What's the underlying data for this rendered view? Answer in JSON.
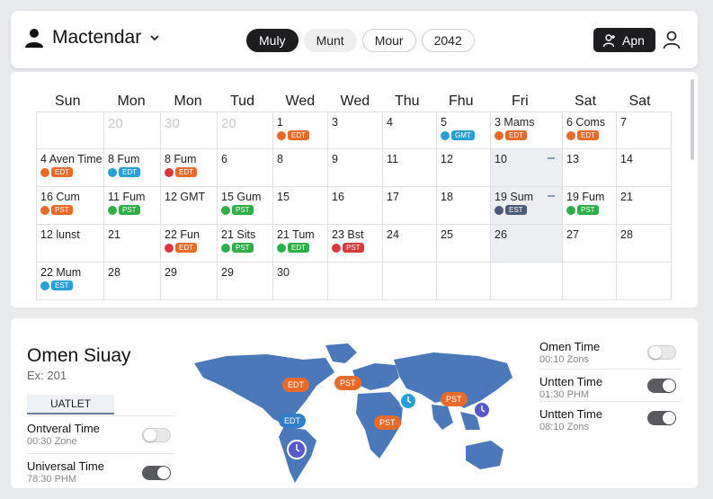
{
  "header": {
    "app_title": "Mactendar",
    "view_pills": [
      "Muly",
      "Munt",
      "Mour",
      "2042"
    ],
    "active_pill": 0,
    "apn_label": "Apn"
  },
  "calendar": {
    "day_headers": [
      "Sun",
      "Mon",
      "Mon",
      "Tud",
      "Wed",
      "Wed",
      "Thu",
      "Fhu",
      "Fri",
      "Sat",
      "Sat"
    ],
    "rows": [
      [
        {
          "text": ""
        },
        {
          "text": "20",
          "muted": true
        },
        {
          "text": "30",
          "muted": true
        },
        {
          "text": "20",
          "muted": true
        },
        {
          "text": "1",
          "tag": "EDT",
          "color": "#e46b2a"
        },
        {
          "text": "3"
        },
        {
          "text": "4"
        },
        {
          "text": "5",
          "tag": "GMT",
          "color": "#2a9fd6"
        },
        {
          "text": "3  Mams",
          "tag": "EDT",
          "color": "#e46b2a"
        },
        {
          "text": "6 Coms",
          "tag": "EDT",
          "color": "#e46b2a"
        },
        {
          "text": "7"
        }
      ],
      [
        {
          "text": "4 Aven Time",
          "tag": "EDT",
          "color": "#e46b2a"
        },
        {
          "text": "8  Fum",
          "tag": "EDT",
          "color": "#2a9fd6"
        },
        {
          "text": "8  Fum",
          "tag": "EDT",
          "color": "#e46b2a",
          "dotcolor": "#d8393b"
        },
        {
          "text": "6"
        },
        {
          "text": "8"
        },
        {
          "text": "9"
        },
        {
          "text": "11"
        },
        {
          "text": "12"
        },
        {
          "text": "10",
          "highlight": true,
          "marker": true
        },
        {
          "text": "13"
        },
        {
          "text": "14"
        }
      ],
      [
        {
          "text": "16 Cum",
          "tag": "PST",
          "color": "#e46b2a"
        },
        {
          "text": "11 Fum",
          "tag": "PST",
          "color": "#2fae48"
        },
        {
          "text": "12 GMT"
        },
        {
          "text": "15 Gum",
          "tag": "PST",
          "color": "#2fae48"
        },
        {
          "text": "15"
        },
        {
          "text": "16"
        },
        {
          "text": "17"
        },
        {
          "text": "18"
        },
        {
          "text": "19 Sum",
          "tag": "EST",
          "color": "#4b5a78",
          "highlight": true,
          "marker": true
        },
        {
          "text": "19 Fum",
          "tag": "PST",
          "color": "#2fae48"
        },
        {
          "text": "21"
        }
      ],
      [
        {
          "text": "12 lunst"
        },
        {
          "text": "21"
        },
        {
          "text": "22 Fun",
          "tag": "EDT",
          "color": "#e46b2a",
          "dotcolor": "#d8393b"
        },
        {
          "text": "21 Sits",
          "tag": "PST",
          "color": "#2fae48"
        },
        {
          "text": "21 Tum",
          "tag": "EDT",
          "color": "#2fae48"
        },
        {
          "text": "23 Bst",
          "tag": "PST",
          "color": "#d8393b"
        },
        {
          "text": "24"
        },
        {
          "text": "25"
        },
        {
          "text": "26",
          "highlight": true
        },
        {
          "text": "27"
        },
        {
          "text": "28"
        }
      ],
      [
        {
          "text": "22 Mum",
          "tag": "EST",
          "color": "#2a9fd6"
        },
        {
          "text": "28"
        },
        {
          "text": "29"
        },
        {
          "text": "29"
        },
        {
          "text": "30"
        },
        {
          "text": ""
        },
        {
          "text": ""
        },
        {
          "text": ""
        },
        {
          "text": ""
        },
        {
          "text": ""
        },
        {
          "text": ""
        }
      ]
    ]
  },
  "zones_panel": {
    "title": "Omen Siuay",
    "subtitle": "Ex: 201",
    "tab_label": "UATLET",
    "left_rows": [
      {
        "name": "Ontveral Time",
        "sub": "00:30 Zone",
        "on": false
      },
      {
        "name": "Universal Time",
        "sub": "78:30 PHM",
        "on": true
      }
    ],
    "right_rows": [
      {
        "name": "Omen Time",
        "sub": "00:10 Zons",
        "on": false
      },
      {
        "name": "Untten Time",
        "sub": "01:30 PHM",
        "on": true
      },
      {
        "name": "Untten Time",
        "sub": "08:10 Zons",
        "on": true
      }
    ]
  },
  "map": {
    "tags": [
      {
        "label": "EDT",
        "color": "#e46b2a"
      },
      {
        "label": "PST",
        "color": "#e46b2a"
      },
      {
        "label": "PST",
        "color": "#e46b2a"
      },
      {
        "label": "PST",
        "color": "#e46b2a"
      },
      {
        "label": "EDT",
        "color": "#2f7fc9"
      }
    ],
    "land_color": "#4a78b8"
  }
}
